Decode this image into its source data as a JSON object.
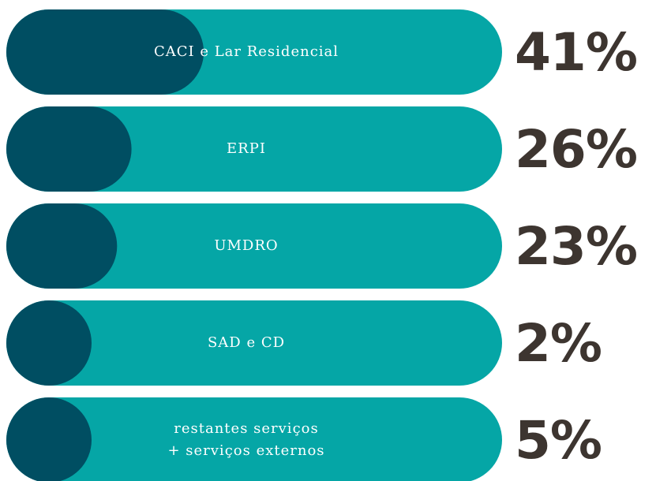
{
  "chart_data": {
    "type": "bar",
    "categories": [
      "CACI e Lar Residencial",
      "ERPI",
      "UMDRO",
      "SAD e CD",
      "restantes serviços\n+ serviços externos"
    ],
    "values": [
      41,
      26,
      23,
      2,
      5
    ],
    "value_labels": [
      "41%",
      "26%",
      "23%",
      "2%",
      "5%"
    ],
    "color": "#004e62",
    "track_color": "#05a6a6",
    "label_color": "#3d3530"
  }
}
